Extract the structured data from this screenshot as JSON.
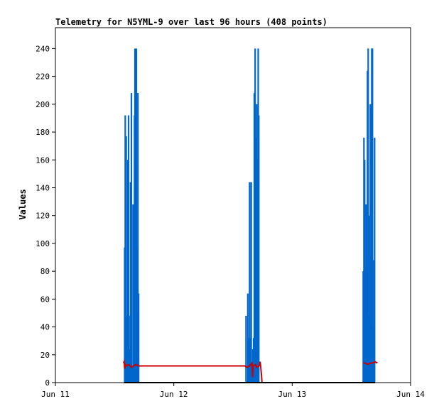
{
  "chart_data": {
    "type": "line",
    "title": "Telemetry for N5YML-9 over last 96 hours (408 points)",
    "ylabel": "Values",
    "xlabel": "",
    "x_ticks": [
      "Jun 11",
      "Jun 12",
      "Jun 13",
      "Jun 14"
    ],
    "x_range_days": [
      0,
      3
    ],
    "ylim": [
      0,
      255
    ],
    "y_ticks": [
      0,
      20,
      40,
      60,
      80,
      100,
      120,
      140,
      160,
      180,
      200,
      220,
      240
    ],
    "legend": "none",
    "grid": false,
    "series": [
      {
        "color": "#0066cc",
        "style": "spikes",
        "points": [
          [
            0.585,
            97
          ],
          [
            0.59,
            192
          ],
          [
            0.598,
            177
          ],
          [
            0.605,
            48
          ],
          [
            0.612,
            160
          ],
          [
            0.618,
            192
          ],
          [
            0.622,
            48
          ],
          [
            0.628,
            24
          ],
          [
            0.635,
            144
          ],
          [
            0.642,
            208
          ],
          [
            0.65,
            12
          ],
          [
            0.656,
            128
          ],
          [
            0.662,
            64
          ],
          [
            0.668,
            192
          ],
          [
            0.672,
            240
          ],
          [
            0.678,
            120
          ],
          [
            0.684,
            240
          ],
          [
            0.69,
            96
          ],
          [
            0.697,
            208
          ],
          [
            0.703,
            64
          ],
          [
            1.61,
            48
          ],
          [
            1.625,
            64
          ],
          [
            1.634,
            32
          ],
          [
            1.64,
            144
          ],
          [
            1.648,
            32
          ],
          [
            1.654,
            144
          ],
          [
            1.66,
            12
          ],
          [
            1.668,
            24
          ],
          [
            1.674,
            32
          ],
          [
            1.68,
            208
          ],
          [
            1.687,
            240
          ],
          [
            1.694,
            176
          ],
          [
            1.7,
            200
          ],
          [
            1.706,
            160
          ],
          [
            1.713,
            240
          ],
          [
            1.718,
            192
          ],
          [
            2.6,
            80
          ],
          [
            2.606,
            176
          ],
          [
            2.612,
            160
          ],
          [
            2.618,
            80
          ],
          [
            2.624,
            128
          ],
          [
            2.63,
            120
          ],
          [
            2.636,
            224
          ],
          [
            2.642,
            240
          ],
          [
            2.648,
            48
          ],
          [
            2.654,
            120
          ],
          [
            2.66,
            200
          ],
          [
            2.666,
            192
          ],
          [
            2.672,
            240
          ],
          [
            2.678,
            240
          ],
          [
            2.684,
            40
          ],
          [
            2.69,
            88
          ],
          [
            2.696,
            176
          ]
        ]
      },
      {
        "color": "#cc0000",
        "style": "line",
        "points": [
          [
            0.575,
            14
          ],
          [
            0.58,
            15
          ],
          [
            0.585,
            10
          ],
          [
            0.59,
            13
          ],
          [
            0.6,
            12
          ],
          [
            0.62,
            13
          ],
          [
            0.64,
            11
          ],
          [
            0.66,
            12
          ],
          [
            0.68,
            13
          ],
          [
            0.7,
            12
          ],
          [
            0.8,
            12
          ],
          [
            1.0,
            12
          ],
          [
            1.2,
            12
          ],
          [
            1.4,
            12
          ],
          [
            1.6,
            12
          ],
          [
            1.62,
            11
          ],
          [
            1.64,
            12
          ],
          [
            1.66,
            14
          ],
          [
            1.665,
            4
          ],
          [
            1.67,
            12
          ],
          [
            1.69,
            13
          ],
          [
            1.7,
            11
          ],
          [
            1.72,
            12
          ],
          [
            1.73,
            15
          ],
          [
            1.74,
            6
          ],
          [
            1.745,
            0
          ]
        ]
      },
      {
        "color": "#000000",
        "style": "line",
        "points": [
          [
            0.58,
            0
          ],
          [
            1.745,
            0
          ],
          [
            2.6,
            0
          ],
          [
            2.7,
            0
          ]
        ]
      },
      {
        "color": "#cc0000",
        "style": "line",
        "points": [
          [
            2.6,
            14
          ],
          [
            2.62,
            14
          ],
          [
            2.64,
            13
          ],
          [
            2.66,
            14
          ],
          [
            2.68,
            14
          ],
          [
            2.7,
            15
          ],
          [
            2.72,
            14
          ]
        ]
      }
    ]
  }
}
